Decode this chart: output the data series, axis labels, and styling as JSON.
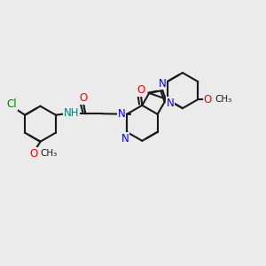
{
  "bg_color": "#ebebeb",
  "bond_color": "#1a1a1a",
  "bond_width": 1.5,
  "atom_colors": {
    "N": "#0000ff",
    "O": "#ff0000",
    "Cl": "#008000",
    "NH": "#008080",
    "C": "#1a1a1a"
  },
  "font_size": 8.5,
  "font_size_small": 7.5
}
